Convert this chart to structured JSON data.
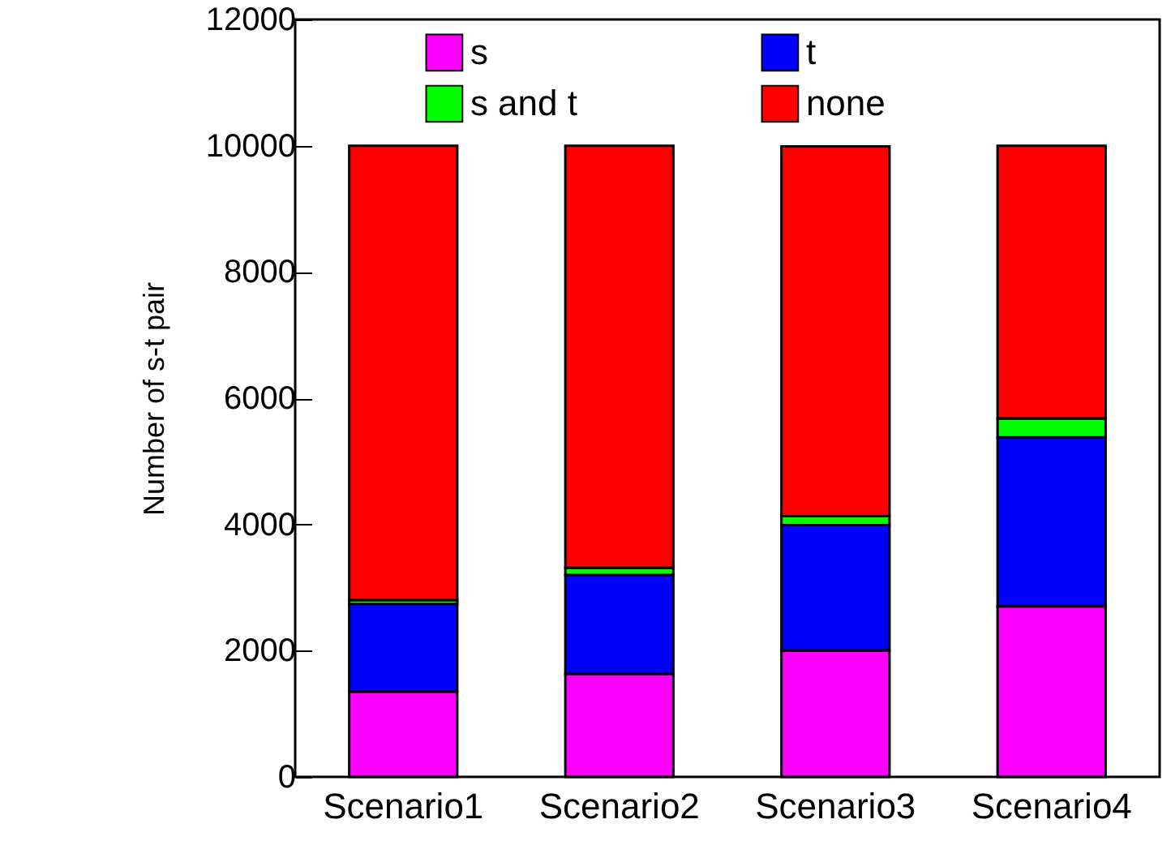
{
  "chart_data": {
    "type": "bar",
    "stacked": true,
    "ylabel": "Number of s-t pair",
    "categories": [
      "Scenario1",
      "Scenario2",
      "Scenario3",
      "Scenario4"
    ],
    "series": [
      {
        "name": "s",
        "color": "#ff00ff",
        "values": [
          1350,
          1630,
          2000,
          2700
        ]
      },
      {
        "name": "t",
        "color": "#0000ff",
        "values": [
          1390,
          1570,
          1990,
          2680
        ]
      },
      {
        "name": "s and t",
        "color": "#00ff00",
        "values": [
          60,
          110,
          140,
          300
        ]
      },
      {
        "name": "none",
        "color": "#ff0000",
        "values": [
          7200,
          6690,
          5860,
          4320
        ]
      }
    ],
    "ylim": [
      0,
      12000
    ],
    "yticks": [
      0,
      2000,
      4000,
      6000,
      8000,
      10000,
      12000
    ],
    "legend": "top"
  }
}
